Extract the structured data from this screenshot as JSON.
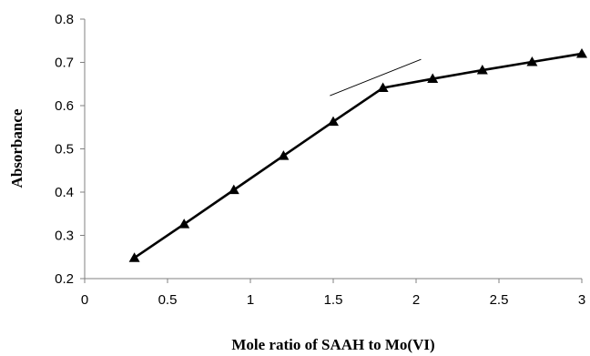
{
  "chart_data": {
    "type": "line",
    "title": "",
    "xlabel": "Mole ratio of  SAAH  to Mo(VI)",
    "ylabel": "Absorbance",
    "xlim": [
      0,
      3
    ],
    "ylim": [
      0.2,
      0.8
    ],
    "x_ticks": [
      "0",
      "0.5",
      "1",
      "1.5",
      "2",
      "2.5",
      "3"
    ],
    "y_ticks": [
      "0.2",
      "0.3",
      "0.4",
      "0.5",
      "0.6",
      "0.7",
      "0.8"
    ],
    "grid": false,
    "legend": "none",
    "series": [
      {
        "x": [
          0.3,
          0.6,
          0.9,
          1.2,
          1.5,
          1.8,
          2.1,
          2.4,
          2.7,
          3.0
        ],
        "y": [
          0.248,
          0.326,
          0.405,
          0.484,
          0.563,
          0.641,
          0.662,
          0.682,
          0.701,
          0.72
        ],
        "marker": "triangle",
        "color": "#000000"
      }
    ],
    "trend_lines": [
      {
        "x": [
          1.48,
          2.03
        ],
        "y": [
          0.623,
          0.707
        ]
      }
    ]
  }
}
